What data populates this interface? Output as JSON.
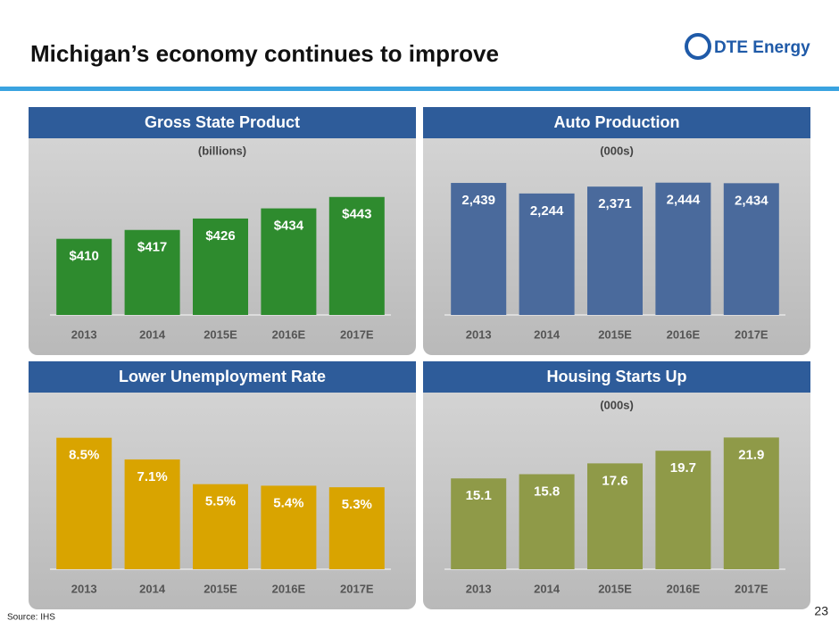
{
  "title": "Michigan’s economy continues to improve",
  "logo": "DTE Energy",
  "source": "Source: IHS",
  "page_number": "23",
  "chart_data": [
    {
      "type": "bar",
      "title": "Gross State Product",
      "subtitle": "(billions)",
      "categories": [
        "2013",
        "2014",
        "2015E",
        "2016E",
        "2017E"
      ],
      "values": [
        410,
        417,
        426,
        434,
        443
      ],
      "value_labels": [
        "$410",
        "$417",
        "$426",
        "$434",
        "$443"
      ],
      "color": "#2e8b2e",
      "ylim": [
        350,
        478
      ]
    },
    {
      "type": "bar",
      "title": "Auto Production",
      "subtitle": "(000s)",
      "categories": [
        "2013",
        "2014",
        "2015E",
        "2016E",
        "2017E"
      ],
      "values": [
        2439,
        2244,
        2371,
        2444,
        2434
      ],
      "value_labels": [
        "2,439",
        "2,244",
        "2,371",
        "2,444",
        "2,434"
      ],
      "color": "#4a6a9c",
      "ylim": [
        0,
        3000
      ]
    },
    {
      "type": "bar",
      "title": "Lower Unemployment Rate",
      "categories": [
        "2013",
        "2014",
        "2015E",
        "2016E",
        "2017E"
      ],
      "values": [
        8.5,
        7.1,
        5.5,
        5.4,
        5.3
      ],
      "value_labels": [
        "8.5%",
        "7.1%",
        "5.5%",
        "5.4%",
        "5.3%"
      ],
      "color": "#d9a400",
      "ylim": [
        0,
        10.5
      ]
    },
    {
      "type": "bar",
      "title": "Housing Starts Up",
      "subtitle": "(000s)",
      "categories": [
        "2013",
        "2014",
        "2015E",
        "2016E",
        "2017E"
      ],
      "values": [
        15.1,
        15.8,
        17.6,
        19.7,
        21.9
      ],
      "color": "#8f9a48",
      "ylim": [
        0,
        27
      ]
    }
  ]
}
